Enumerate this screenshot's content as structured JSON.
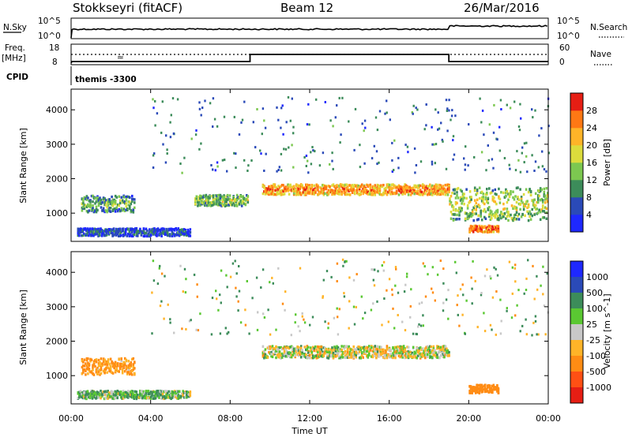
{
  "header": {
    "station": "Stokkseyri (fitACF)",
    "beam": "Beam 12",
    "date": "26/Mar/2016"
  },
  "info_panel": {
    "nsky_label": "N.Sky",
    "nsky_ticks": [
      "10^5",
      "10^0"
    ],
    "nsearch_label": "N.Search",
    "nsearch_ticks": [
      "10^5",
      "10^0"
    ],
    "freq_label": "Freq.",
    "freq_unit": "[MHz]",
    "freq_ticks": [
      "18",
      "8"
    ],
    "nave_label": "Nave",
    "nave_ticks": [
      "60",
      "0"
    ],
    "cpid_label": "CPID",
    "cpid_value": "themis -3300"
  },
  "chart_data": [
    {
      "type": "heatmap",
      "name": "power-panel",
      "ylabel": "Slant Range [km]",
      "ylim": [
        180,
        4600
      ],
      "yticks": [
        1000,
        2000,
        3000,
        4000
      ],
      "xlabel": "Time UT",
      "xlim_hours": [
        0,
        24
      ],
      "xticks": [
        "00:00",
        "04:00",
        "08:00",
        "12:00",
        "16:00",
        "20:00",
        "00:00"
      ],
      "colorbar": {
        "label": "Power [dB]",
        "ticks": [
          "4",
          "8",
          "12",
          "16",
          "20",
          "24",
          "28"
        ],
        "colors": [
          "#1e28ff",
          "#2a4ab8",
          "#3c8c5a",
          "#7cc850",
          "#dcdc3c",
          "#ffb428",
          "#ff7814",
          "#e61e14"
        ]
      },
      "features": [
        {
          "label": "echo band",
          "start": 9.6,
          "end": 19.0,
          "range_km": 1720,
          "width_km": 190,
          "power_db": 26
        },
        {
          "label": "morning arc",
          "start": 0.5,
          "end": 3.2,
          "range_km": 1300,
          "width_km": 300,
          "power_db": 14
        },
        {
          "label": "near-range echoes",
          "start": 0.3,
          "end": 6.0,
          "range_km": 480,
          "width_km": 140,
          "power_db": 8
        },
        {
          "label": "pre-noon band",
          "start": 6.2,
          "end": 8.9,
          "range_km": 1400,
          "width_km": 200,
          "power_db": 16
        },
        {
          "label": "evening echoes",
          "start": 19.0,
          "end": 24.0,
          "range_km": 1300,
          "width_km": 600,
          "power_db": 18
        },
        {
          "label": "evening strong patch",
          "start": 20.0,
          "end": 21.5,
          "range_km": 580,
          "width_km": 120,
          "power_db": 28
        }
      ]
    },
    {
      "type": "heatmap",
      "name": "velocity-panel",
      "ylabel": "Slant Range [km]",
      "ylim": [
        180,
        4600
      ],
      "yticks": [
        1000,
        2000,
        3000,
        4000
      ],
      "xlabel": "Time UT",
      "xlim_hours": [
        0,
        24
      ],
      "xticks": [
        "00:00",
        "04:00",
        "08:00",
        "12:00",
        "16:00",
        "20:00",
        "00:00"
      ],
      "colorbar": {
        "label": "Velocity [m s^-1]",
        "ticks": [
          "1000",
          "500",
          "100",
          "25",
          "-25",
          "-100",
          "-500",
          "-1000"
        ],
        "colors": [
          "#1e28ff",
          "#2a4ab8",
          "#3c8c5a",
          "#5ac832",
          "#c8c8c8",
          "#ffb428",
          "#ff8c14",
          "#ff5014",
          "#e61e14"
        ]
      },
      "features": [
        {
          "label": "ground scatter band",
          "start": 9.6,
          "end": 19.0,
          "range_km": 1720,
          "width_km": 220,
          "velocity_ms": 0
        },
        {
          "label": "morning arc",
          "start": 0.5,
          "end": 3.2,
          "range_km": 1300,
          "width_km": 300,
          "velocity_ms": -150
        },
        {
          "label": "near-range echoes",
          "start": 0.3,
          "end": 6.0,
          "range_km": 480,
          "width_km": 140,
          "velocity_ms": 80
        },
        {
          "label": "evening patch",
          "start": 20.0,
          "end": 21.5,
          "range_km": 650,
          "width_km": 150,
          "velocity_ms": -300
        }
      ]
    }
  ],
  "time_axis_label": "Time UT"
}
